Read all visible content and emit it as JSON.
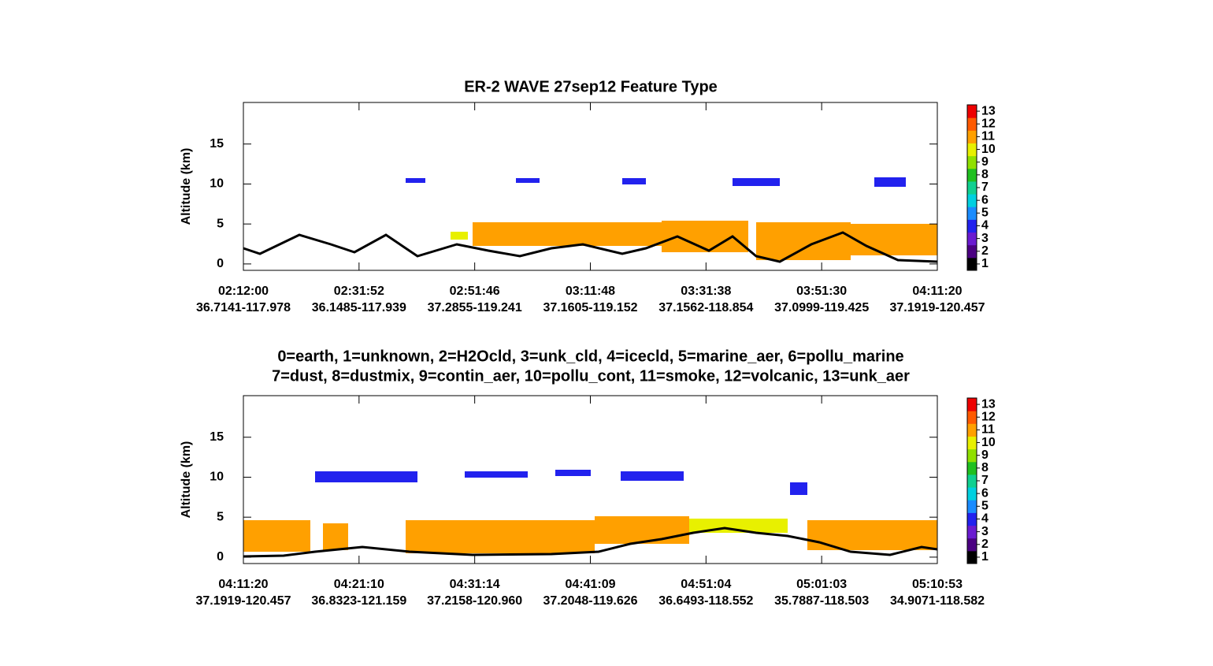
{
  "chart_data": [
    {
      "type": "curtain",
      "title": "ER-2 WAVE  27sep12  Feature Type",
      "ylabel": "Altitude (km)",
      "ylim": [
        -0.8,
        20.2
      ],
      "yticks": [
        0,
        5,
        10,
        15
      ],
      "categories": [
        "02:12:00",
        "02:31:52",
        "02:51:46",
        "03:11:48",
        "03:31:38",
        "03:51:30",
        "04:11:20"
      ],
      "category_sublabels": [
        "36.7141-117.978",
        "36.1485-117.939",
        "37.2855-119.241",
        "37.1605-119.152",
        "37.1562-118.854",
        "37.0999-119.425",
        "37.1919-120.457"
      ],
      "colorbar": {
        "ticks": [
          1,
          2,
          3,
          4,
          5,
          6,
          7,
          8,
          9,
          10,
          11,
          12,
          13
        ],
        "colors": [
          "#000000",
          "#4b0082",
          "#6a1bd0",
          "#2222ee",
          "#1a8cff",
          "#00d0e0",
          "#10d090",
          "#20c020",
          "#90e000",
          "#e8f000",
          "#ffa000",
          "#ff5a00",
          "#ee0000"
        ]
      }
    },
    {
      "type": "curtain",
      "title": [
        "0=earth, 1=unknown, 2=H2Ocld, 3=unk_cld, 4=icecld, 5=marine_aer, 6=pollu_marine",
        "7=dust, 8=dustmix, 9=contin_aer, 10=pollu_cont, 11=smoke, 12=volcanic, 13=unk_aer"
      ],
      "ylabel": "Altitude (km)",
      "ylim": [
        -0.8,
        20.2
      ],
      "yticks": [
        0,
        5,
        10,
        15
      ],
      "categories": [
        "04:11:20",
        "04:21:10",
        "04:31:14",
        "04:41:09",
        "04:51:04",
        "05:01:03",
        "05:10:53"
      ],
      "category_sublabels": [
        "37.1919-120.457",
        "36.8323-121.159",
        "37.2158-120.960",
        "37.2048-119.626",
        "36.6493-118.552",
        "35.7887-118.503",
        "34.9071-118.582"
      ],
      "colorbar": {
        "ticks": [
          1,
          2,
          3,
          4,
          5,
          6,
          7,
          8,
          9,
          10,
          11,
          12,
          13
        ],
        "colors": [
          "#000000",
          "#4b0082",
          "#6a1bd0",
          "#2222ee",
          "#1a8cff",
          "#00d0e0",
          "#10d090",
          "#20c020",
          "#90e000",
          "#e8f000",
          "#ffa000",
          "#ff5a00",
          "#ee0000"
        ]
      }
    }
  ]
}
